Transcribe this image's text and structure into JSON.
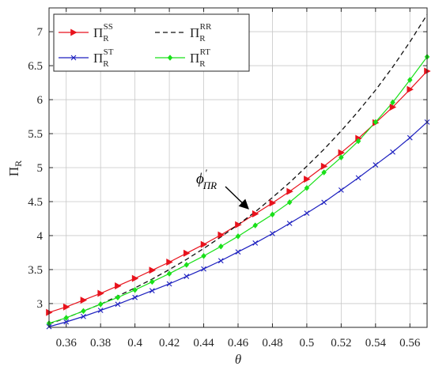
{
  "chart_data": {
    "type": "line",
    "xlabel": "θ",
    "ylabel": {
      "main": "Π",
      "sub": "R"
    },
    "xlim": [
      0.35,
      0.57
    ],
    "ylim": [
      2.65,
      7.35
    ],
    "xticks": [
      0.36,
      0.38,
      0.4,
      0.42,
      0.44,
      0.46,
      0.48,
      0.5,
      0.52,
      0.54,
      0.56
    ],
    "xtick_labels": [
      "0.36",
      "0.38",
      "0.4",
      "0.42",
      "0.44",
      "0.46",
      "0.48",
      "0.5",
      "0.52",
      "0.54",
      "0.56"
    ],
    "yticks": [
      3,
      3.5,
      4,
      4.5,
      5,
      5.5,
      6,
      6.5,
      7
    ],
    "ytick_labels": [
      "3",
      "3.5",
      "4",
      "4.5",
      "5",
      "5.5",
      "6",
      "6.5",
      "7"
    ],
    "grid": true,
    "legend_position": "top-left",
    "x": [
      0.35,
      0.36,
      0.37,
      0.38,
      0.39,
      0.4,
      0.41,
      0.42,
      0.43,
      0.44,
      0.45,
      0.46,
      0.47,
      0.48,
      0.49,
      0.5,
      0.51,
      0.52,
      0.53,
      0.54,
      0.55,
      0.56,
      0.57
    ],
    "series": [
      {
        "name": {
          "main": "Π",
          "sub": "R",
          "sup": "SS"
        },
        "color": "#e8121c",
        "style": "solid",
        "marker": "triangle-right",
        "values": [
          2.87,
          2.95,
          3.05,
          3.15,
          3.26,
          3.37,
          3.49,
          3.61,
          3.74,
          3.87,
          4.01,
          4.16,
          4.32,
          4.48,
          4.65,
          4.83,
          5.02,
          5.22,
          5.43,
          5.66,
          5.89,
          6.15,
          6.42
        ]
      },
      {
        "name": {
          "main": "Π",
          "sub": "R",
          "sup": "RR"
        },
        "color": "#111111",
        "style": "dashed",
        "marker": "none",
        "values": [
          2.7,
          2.79,
          2.89,
          2.99,
          3.11,
          3.23,
          3.36,
          3.5,
          3.65,
          3.81,
          3.98,
          4.16,
          4.35,
          4.56,
          4.78,
          5.02,
          5.27,
          5.54,
          5.83,
          6.14,
          6.48,
          6.85,
          7.25
        ]
      },
      {
        "name": {
          "main": "Π",
          "sub": "R",
          "sup": "ST"
        },
        "color": "#1c1fbf",
        "style": "solid",
        "marker": "x",
        "values": [
          2.66,
          2.73,
          2.81,
          2.9,
          2.99,
          3.09,
          3.19,
          3.29,
          3.4,
          3.51,
          3.63,
          3.76,
          3.89,
          4.03,
          4.18,
          4.33,
          4.49,
          4.67,
          4.85,
          5.04,
          5.23,
          5.44,
          5.67
        ]
      },
      {
        "name": {
          "main": "Π",
          "sub": "R",
          "sup": "RT"
        },
        "color": "#19e019",
        "style": "solid",
        "marker": "diamond",
        "values": [
          2.71,
          2.79,
          2.89,
          2.99,
          3.09,
          3.2,
          3.32,
          3.44,
          3.57,
          3.7,
          3.84,
          3.99,
          4.15,
          4.31,
          4.49,
          4.7,
          4.93,
          5.15,
          5.39,
          5.67,
          5.96,
          6.29,
          6.63
        ]
      }
    ],
    "annotations": [
      {
        "text_main": "ϕ",
        "text_prime": "′",
        "text_sub": "ΠR",
        "point": [
          0.47,
          4.33
        ]
      }
    ]
  }
}
